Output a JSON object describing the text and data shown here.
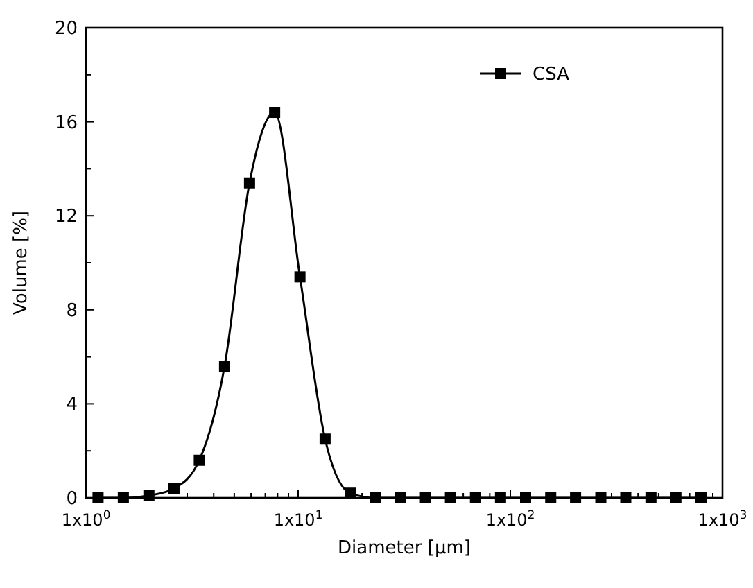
{
  "chart_data": {
    "type": "line",
    "xlabel": "Diameter [μm]",
    "ylabel": "Volume [%]",
    "log": "x",
    "xlim": [
      1,
      1000
    ],
    "ylim": [
      0,
      20
    ],
    "xticks": [
      {
        "value": 1,
        "label": "1x10$^{0}$"
      },
      {
        "value": 2,
        "label": null
      },
      {
        "value": 3,
        "label": null
      },
      {
        "value": 4,
        "label": null
      },
      {
        "value": 5,
        "label": null
      },
      {
        "value": 6,
        "label": null
      },
      {
        "value": 7,
        "label": null
      },
      {
        "value": 8,
        "label": null
      },
      {
        "value": 9,
        "label": null
      },
      {
        "value": 10,
        "label": "1x10$^{1}$"
      },
      {
        "value": 20,
        "label": null
      },
      {
        "value": 30,
        "label": null
      },
      {
        "value": 40,
        "label": null
      },
      {
        "value": 50,
        "label": null
      },
      {
        "value": 60,
        "label": null
      },
      {
        "value": 70,
        "label": null
      },
      {
        "value": 80,
        "label": null
      },
      {
        "value": 90,
        "label": null
      },
      {
        "value": 100,
        "label": "1x10$^{2}$"
      },
      {
        "value": 200,
        "label": null
      },
      {
        "value": 300,
        "label": null
      },
      {
        "value": 400,
        "label": null
      },
      {
        "value": 500,
        "label": null
      },
      {
        "value": 600,
        "label": null
      },
      {
        "value": 700,
        "label": null
      },
      {
        "value": 800,
        "label": null
      },
      {
        "value": 900,
        "label": null
      },
      {
        "value": 1000,
        "label": "1x10$^{3}$"
      }
    ],
    "yticks": [
      0,
      {
        "value": 2,
        "label": null
      },
      4,
      {
        "value": 6,
        "label": null
      },
      8,
      {
        "value": 10,
        "label": null
      },
      12,
      {
        "value": 14,
        "label": null
      },
      16,
      {
        "value": 18,
        "label": null
      },
      20
    ],
    "x": [
      1.14,
      1.5,
      1.98,
      2.6,
      3.42,
      4.5,
      5.9,
      7.75,
      10.2,
      13.4,
      17.6,
      23.1,
      30.3,
      39.8,
      52.2,
      68.5,
      89.9,
      118,
      155,
      203,
      267,
      350,
      460,
      603,
      792
    ],
    "series": [
      {
        "name": "CSA",
        "color": "#000000",
        "values": [
          0,
          0,
          0.1,
          0.4,
          1.6,
          5.6,
          13.4,
          16.4,
          9.4,
          2.5,
          0.2,
          0,
          0,
          0,
          0,
          0,
          0,
          0,
          0,
          0,
          0,
          0,
          0,
          0,
          0
        ]
      }
    ],
    "marker": "square",
    "line_style": "solid",
    "grid": false,
    "legend": "top right"
  }
}
